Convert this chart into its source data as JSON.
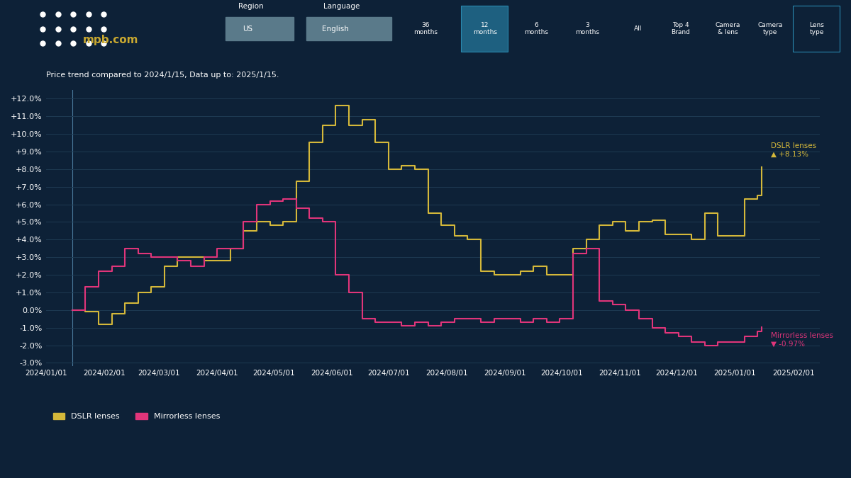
{
  "bg_color": "#0d2137",
  "plot_bg_color": "#0d2137",
  "grid_color": "#1e3a52",
  "dslr_color": "#d4b83a",
  "mirrorless_color": "#e0357a",
  "title_text": "Price trend compared to 2024/1/15, Data up to: 2025/1/15.",
  "ylabel_values": [
    "-3.0%",
    "-2.0%",
    "-1.0%",
    "0.0%",
    "+1.0%",
    "+2.0%",
    "+3.0%",
    "+4.0%",
    "+5.0%",
    "+6.0%",
    "+7.0%",
    "+8.0%",
    "+9.0%",
    "+10.0%",
    "+11.0%",
    "+12.0%"
  ],
  "ylim": [
    -3.2,
    12.5
  ],
  "dslr_label": "DSLR lenses",
  "mirrorless_label": "Mirrorless lenses",
  "dslr_final_val": "+8.13%",
  "mirrorless_final_val": "-0.97%",
  "dslr_dates": [
    "2024-01-15",
    "2024-01-22",
    "2024-01-29",
    "2024-02-05",
    "2024-02-12",
    "2024-02-19",
    "2024-02-26",
    "2024-03-04",
    "2024-03-11",
    "2024-03-18",
    "2024-03-25",
    "2024-04-01",
    "2024-04-08",
    "2024-04-15",
    "2024-04-22",
    "2024-04-29",
    "2024-05-06",
    "2024-05-13",
    "2024-05-20",
    "2024-05-27",
    "2024-06-03",
    "2024-06-10",
    "2024-06-17",
    "2024-06-24",
    "2024-07-01",
    "2024-07-08",
    "2024-07-15",
    "2024-07-22",
    "2024-07-29",
    "2024-08-05",
    "2024-08-12",
    "2024-08-19",
    "2024-08-26",
    "2024-09-02",
    "2024-09-09",
    "2024-09-16",
    "2024-09-23",
    "2024-09-30",
    "2024-10-07",
    "2024-10-14",
    "2024-10-21",
    "2024-10-28",
    "2024-11-04",
    "2024-11-11",
    "2024-11-18",
    "2024-11-25",
    "2024-12-02",
    "2024-12-09",
    "2024-12-16",
    "2024-12-23",
    "2025-01-06",
    "2025-01-13",
    "2025-01-15"
  ],
  "dslr_values": [
    0.0,
    -0.1,
    -0.8,
    -0.2,
    0.4,
    1.0,
    1.3,
    2.5,
    3.0,
    3.0,
    2.8,
    2.8,
    3.5,
    4.5,
    5.0,
    4.8,
    5.0,
    7.3,
    9.5,
    10.5,
    11.6,
    10.5,
    10.8,
    9.5,
    8.0,
    8.2,
    8.0,
    5.5,
    4.8,
    4.2,
    4.0,
    2.2,
    2.0,
    2.0,
    2.2,
    2.5,
    2.0,
    2.0,
    3.5,
    4.0,
    4.8,
    5.0,
    4.5,
    5.0,
    5.1,
    4.3,
    4.3,
    4.0,
    5.5,
    4.2,
    6.3,
    6.5,
    8.13
  ],
  "mirrorless_dates": [
    "2024-01-15",
    "2024-01-22",
    "2024-01-29",
    "2024-02-05",
    "2024-02-12",
    "2024-02-19",
    "2024-02-26",
    "2024-03-04",
    "2024-03-11",
    "2024-03-18",
    "2024-03-25",
    "2024-04-01",
    "2024-04-08",
    "2024-04-15",
    "2024-04-22",
    "2024-04-29",
    "2024-05-06",
    "2024-05-13",
    "2024-05-20",
    "2024-05-27",
    "2024-06-03",
    "2024-06-10",
    "2024-06-17",
    "2024-06-24",
    "2024-07-01",
    "2024-07-08",
    "2024-07-15",
    "2024-07-22",
    "2024-07-29",
    "2024-08-05",
    "2024-08-12",
    "2024-08-19",
    "2024-08-26",
    "2024-09-02",
    "2024-09-09",
    "2024-09-16",
    "2024-09-23",
    "2024-09-30",
    "2024-10-07",
    "2024-10-14",
    "2024-10-21",
    "2024-10-28",
    "2024-11-04",
    "2024-11-11",
    "2024-11-18",
    "2024-11-25",
    "2024-12-02",
    "2024-12-09",
    "2024-12-16",
    "2024-12-23",
    "2025-01-06",
    "2025-01-13",
    "2025-01-15"
  ],
  "mirrorless_values": [
    0.0,
    1.3,
    2.2,
    2.5,
    3.5,
    3.2,
    3.0,
    3.0,
    2.8,
    2.5,
    3.0,
    3.5,
    3.5,
    5.0,
    6.0,
    6.2,
    6.3,
    5.8,
    5.2,
    5.0,
    2.0,
    1.0,
    -0.5,
    -0.7,
    -0.7,
    -0.9,
    -0.7,
    -0.9,
    -0.7,
    -0.5,
    -0.5,
    -0.7,
    -0.5,
    -0.5,
    -0.7,
    -0.5,
    -0.7,
    -0.5,
    3.2,
    3.5,
    0.5,
    0.3,
    0.0,
    -0.5,
    -1.0,
    -1.3,
    -1.5,
    -1.8,
    -2.0,
    -1.8,
    -1.5,
    -1.2,
    -0.97
  ],
  "xticklabels": [
    "2024/01/01",
    "2024/02/01",
    "2024/03/01",
    "2024/04/01",
    "2024/05/01",
    "2024/06/01",
    "2024/07/01",
    "2024/08/01",
    "2024/09/01",
    "2024/10/01",
    "2024/11/01",
    "2024/12/01",
    "2025/01/01",
    "2025/02/01"
  ],
  "xtick_dates": [
    "2024-01-01",
    "2024-02-01",
    "2024-03-01",
    "2024-04-01",
    "2024-05-01",
    "2024-06-01",
    "2024-07-01",
    "2024-08-01",
    "2024-09-01",
    "2024-10-01",
    "2024-11-01",
    "2024-12-01",
    "2025-01-01",
    "2025-02-01"
  ]
}
